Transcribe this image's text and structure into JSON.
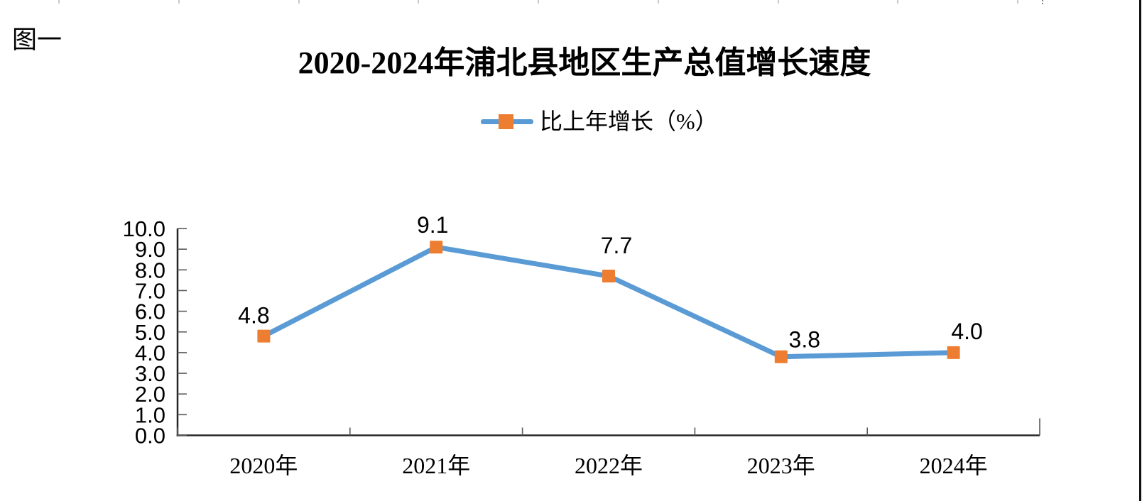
{
  "figure_label": "图一",
  "chart_data": {
    "type": "line",
    "title": "2020-2024年浦北县地区生产总值增长速度",
    "categories": [
      "2020年",
      "2021年",
      "2022年",
      "2023年",
      "2024年"
    ],
    "series": [
      {
        "name": "比上年增长（%）",
        "values": [
          4.8,
          9.1,
          7.7,
          3.8,
          4.0
        ]
      }
    ],
    "value_labels": [
      "4.8",
      "9.1",
      "7.7",
      "3.8",
      "4.0"
    ],
    "xlabel": "",
    "ylabel": "",
    "ylim": [
      0.0,
      10.0
    ],
    "ytick_step": 1.0,
    "ytick_labels": [
      "0.0",
      "1.0",
      "2.0",
      "3.0",
      "4.0",
      "5.0",
      "6.0",
      "7.0",
      "8.0",
      "9.0",
      "10.0"
    ],
    "grid": false,
    "legend_position": "top-center",
    "marker_shape": "square",
    "colors": {
      "line": "#5B9BD5",
      "marker": "#ED7D31",
      "axis": "#262626",
      "tick": "#595959",
      "text": "#000000"
    }
  }
}
